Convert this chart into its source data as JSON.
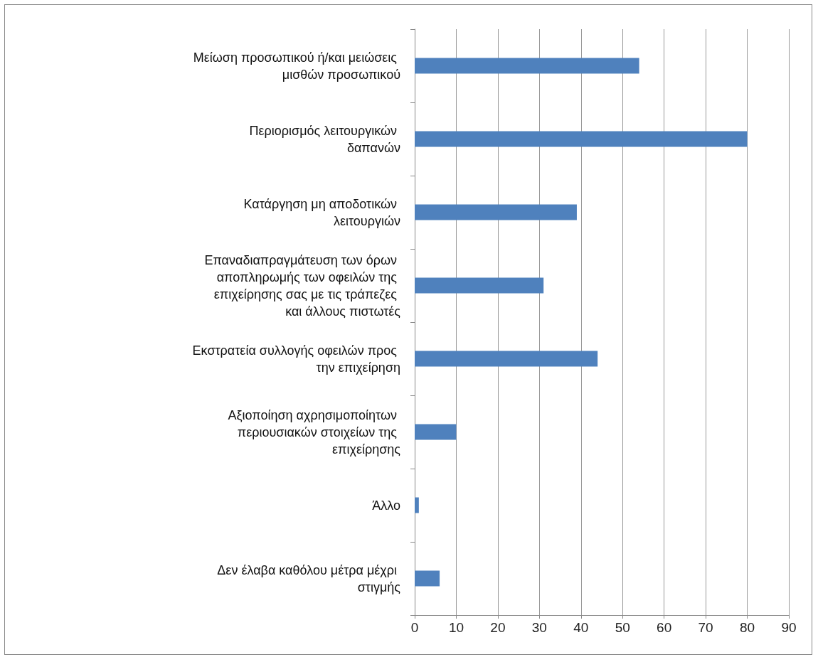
{
  "chart_data": {
    "type": "bar",
    "orientation": "horizontal",
    "categories": [
      "Μείωση προσωπικού ή/και μειώσεις μισθών προσωπικού",
      "Περιορισμός λειτουργικών δαπανών",
      "Κατάργηση μη αποδοτικών λειτουργιών",
      "Επαναδιαπραγμάτευση των όρων αποπληρωμής των οφειλών της επιχείρησης σας με τις τράπεζες και άλλους πιστωτές",
      "Εκστρατεία συλλογής οφειλών προς την επιχείρηση",
      "Αξιοποίηση αχρησιμοποίητων περιουσιακών στοιχείων της επιχείρησης",
      "Άλλο",
      "Δεν έλαβα καθόλου μέτρα μέχρι στιγμής"
    ],
    "values": [
      54,
      80,
      39,
      31,
      44,
      10,
      1,
      6
    ],
    "color": "#4f81bd",
    "xlim": [
      0,
      90
    ],
    "xticks": [
      0,
      10,
      20,
      30,
      40,
      50,
      60,
      70,
      80,
      90
    ],
    "grid": "x"
  }
}
